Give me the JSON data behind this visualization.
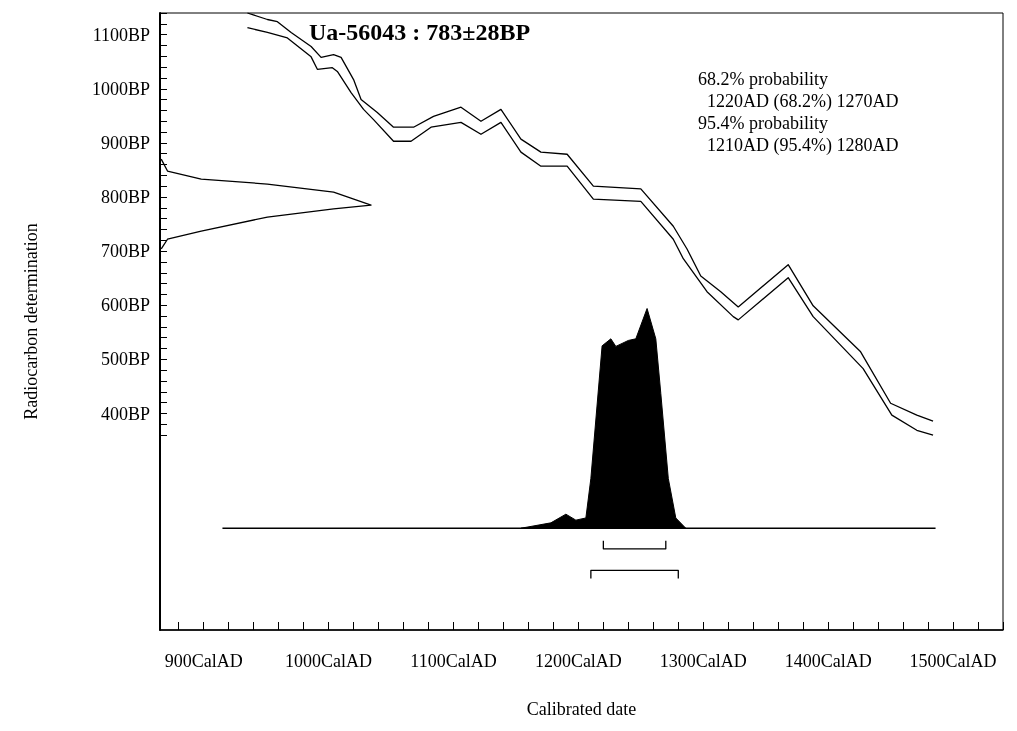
{
  "chart_data": {
    "type": "line",
    "title": "Ua-56043 : 783±28BP",
    "xlabel": "Calibrated date",
    "ylabel": "Radiocarbon determination",
    "annotations": [
      "68.2% probability",
      "  1220AD (68.2%) 1270AD",
      "95.4% probability",
      "  1210AD (95.4%) 1280AD"
    ],
    "marker": "none",
    "xlim": [
      865,
      1540
    ],
    "ylim": [
      0,
      1140
    ],
    "xticks": [
      {
        "value": 880,
        "label": null
      },
      {
        "value": 900,
        "label": "900CalAD"
      },
      {
        "value": 920,
        "label": null
      },
      {
        "value": 940,
        "label": null
      },
      {
        "value": 960,
        "label": null
      },
      {
        "value": 980,
        "label": null
      },
      {
        "value": 1000,
        "label": "1000CalAD"
      },
      {
        "value": 1020,
        "label": null
      },
      {
        "value": 1040,
        "label": null
      },
      {
        "value": 1060,
        "label": null
      },
      {
        "value": 1080,
        "label": null
      },
      {
        "value": 1100,
        "label": "1100CalAD"
      },
      {
        "value": 1120,
        "label": null
      },
      {
        "value": 1140,
        "label": null
      },
      {
        "value": 1160,
        "label": null
      },
      {
        "value": 1180,
        "label": null
      },
      {
        "value": 1200,
        "label": "1200CalAD"
      },
      {
        "value": 1220,
        "label": null
      },
      {
        "value": 1240,
        "label": null
      },
      {
        "value": 1260,
        "label": null
      },
      {
        "value": 1280,
        "label": null
      },
      {
        "value": 1300,
        "label": "1300CalAD"
      },
      {
        "value": 1320,
        "label": null
      },
      {
        "value": 1340,
        "label": null
      },
      {
        "value": 1360,
        "label": null
      },
      {
        "value": 1380,
        "label": null
      },
      {
        "value": 1400,
        "label": "1400CalAD"
      },
      {
        "value": 1420,
        "label": null
      },
      {
        "value": 1440,
        "label": null
      },
      {
        "value": 1460,
        "label": null
      },
      {
        "value": 1480,
        "label": null
      },
      {
        "value": 1500,
        "label": "1500CalAD"
      },
      {
        "value": 1520,
        "label": null
      },
      {
        "value": 1540,
        "label": null
      }
    ],
    "yticks": [
      {
        "value": 360,
        "label": null
      },
      {
        "value": 380,
        "label": null
      },
      {
        "value": 400,
        "label": "400BP"
      },
      {
        "value": 420,
        "label": null
      },
      {
        "value": 440,
        "label": null
      },
      {
        "value": 460,
        "label": null
      },
      {
        "value": 480,
        "label": null
      },
      {
        "value": 500,
        "label": "500BP"
      },
      {
        "value": 520,
        "label": null
      },
      {
        "value": 540,
        "label": null
      },
      {
        "value": 560,
        "label": null
      },
      {
        "value": 580,
        "label": null
      },
      {
        "value": 600,
        "label": "600BP"
      },
      {
        "value": 620,
        "label": null
      },
      {
        "value": 640,
        "label": null
      },
      {
        "value": 660,
        "label": null
      },
      {
        "value": 680,
        "label": null
      },
      {
        "value": 700,
        "label": "700BP"
      },
      {
        "value": 720,
        "label": null
      },
      {
        "value": 740,
        "label": null
      },
      {
        "value": 760,
        "label": null
      },
      {
        "value": 780,
        "label": null
      },
      {
        "value": 800,
        "label": "800BP"
      },
      {
        "value": 820,
        "label": null
      },
      {
        "value": 840,
        "label": null
      },
      {
        "value": 860,
        "label": null
      },
      {
        "value": 880,
        "label": null
      },
      {
        "value": 900,
        "label": "900BP"
      },
      {
        "value": 920,
        "label": null
      },
      {
        "value": 940,
        "label": null
      },
      {
        "value": 960,
        "label": null
      },
      {
        "value": 980,
        "label": null
      },
      {
        "value": 1000,
        "label": "1000BP"
      },
      {
        "value": 1020,
        "label": null
      },
      {
        "value": 1040,
        "label": null
      },
      {
        "value": 1060,
        "label": null
      },
      {
        "value": 1080,
        "label": null
      },
      {
        "value": 1100,
        "label": "1100BP"
      },
      {
        "value": 1120,
        "label": null
      },
      {
        "value": 1140,
        "label": null
      }
    ],
    "series": [
      {
        "color": "#000000",
        "x": [
          935,
          951,
          959,
          970,
          986,
          994,
          1004,
          1010,
          1020,
          1026,
          1039,
          1052,
          1068,
          1084,
          1106,
          1122,
          1138,
          1154,
          1170,
          1191,
          1212,
          1250,
          1276,
          1287,
          1298,
          1314,
          1328,
          1368,
          1388,
          1426,
          1450,
          1471,
          1484
        ],
        "values": [
          1140,
          1128,
          1124,
          1104,
          1078,
          1058,
          1063,
          1058,
          1017,
          980,
          956,
          929,
          929,
          949,
          966,
          940,
          962,
          907,
          883,
          879,
          820,
          815,
          746,
          704,
          654,
          625,
          597,
          675,
          599,
          514,
          419,
          397,
          386
        ]
      },
      {
        "color": "#000000",
        "x": [
          935,
          951,
          967,
          986,
          991,
          1003,
          1007,
          1018,
          1028,
          1036,
          1052,
          1066,
          1082,
          1106,
          1122,
          1138,
          1154,
          1170,
          1191,
          1212,
          1250,
          1276,
          1284,
          1303,
          1324,
          1328,
          1368,
          1388,
          1428,
          1451,
          1471,
          1484
        ],
        "values": [
          1113,
          1104,
          1094,
          1059,
          1036,
          1039,
          1032,
          993,
          962,
          943,
          903,
          903,
          929,
          938,
          916,
          938,
          883,
          857,
          857,
          796,
          792,
          722,
          686,
          625,
          579,
          573,
          651,
          579,
          483,
          397,
          369,
          360
        ]
      },
      {
        "color": "#000000",
        "x": [
          866,
          871,
          898,
          951,
          1004,
          1034,
          1004,
          951,
          898,
          871,
          866
        ],
        "values": [
          870,
          848,
          833,
          824,
          809,
          785,
          778,
          763,
          737,
          722,
          704
        ]
      },
      {
        "type": "area",
        "color": "#000000",
        "x": [
          1154,
          1178,
          1190,
          1198,
          1206,
          1210,
          1219,
          1226,
          1230,
          1240,
          1246,
          1255,
          1262,
          1266,
          1272,
          1278,
          1286
        ],
        "values": [
          188,
          198,
          214,
          203,
          207,
          280,
          525,
          538,
          524,
          535,
          538,
          594,
          538,
          437,
          280,
          207,
          188
        ]
      },
      {
        "color": "#000000",
        "x": [
          915,
          1486
        ],
        "values": [
          188,
          188
        ]
      },
      {
        "color": "#000000",
        "x": [
          1220,
          1220,
          1270,
          1270
        ],
        "values": [
          165,
          150,
          150,
          165
        ]
      },
      {
        "color": "#000000",
        "x": [
          1210,
          1210,
          1280,
          1280
        ],
        "values": [
          95,
          110,
          110,
          95
        ]
      }
    ]
  }
}
